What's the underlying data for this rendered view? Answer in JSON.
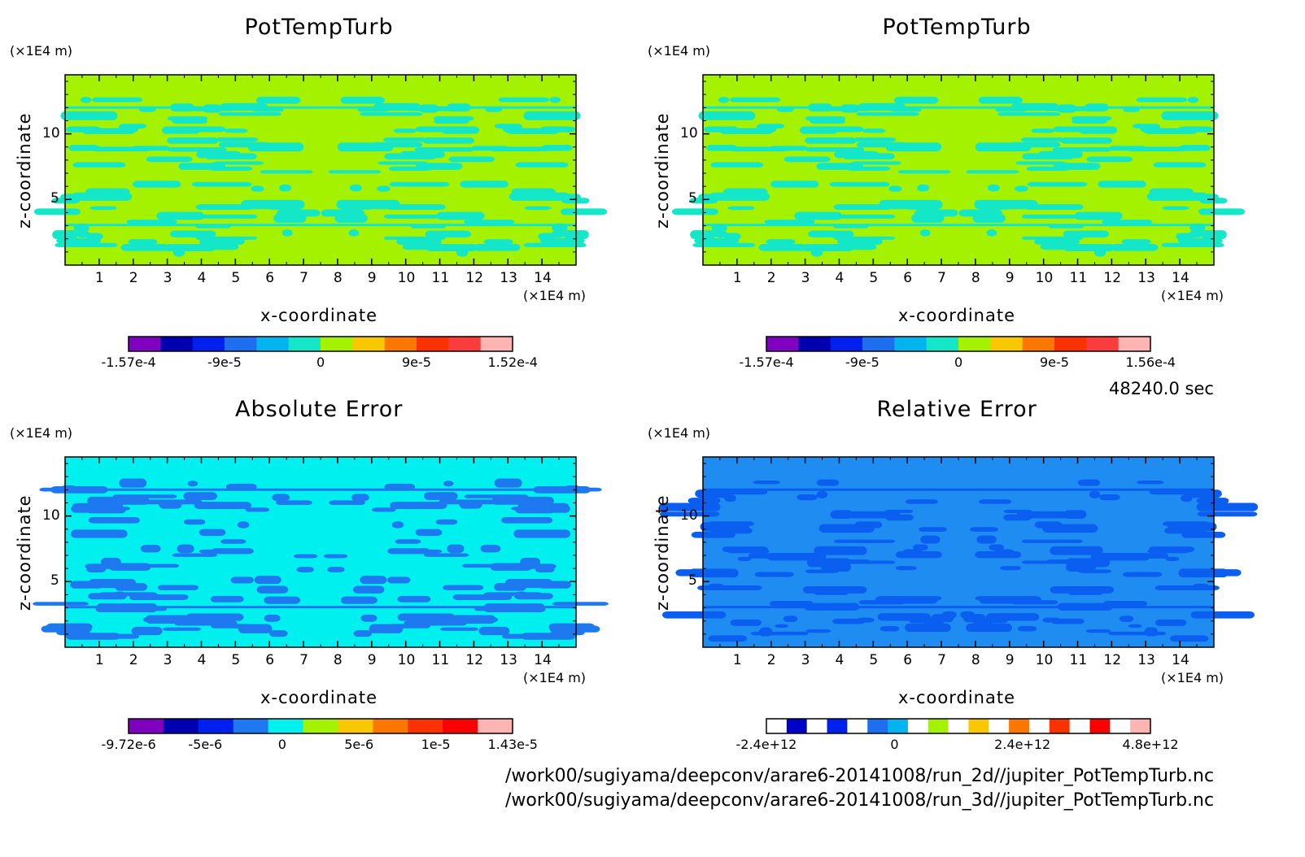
{
  "time_label": "48240.0 sec",
  "file_paths": [
    "/work00/sugiyama/deepconv/arare6-20141008/run_2d//jupiter_PotTempTurb.nc",
    "/work00/sugiyama/deepconv/arare6-20141008/run_3d//jupiter_PotTempTurb.nc"
  ],
  "chart_data": [
    {
      "type": "heatmap",
      "title": "PotTempTurb",
      "xlabel": "x-coordinate",
      "ylabel": "z-coordinate",
      "x_unit": "(×1E4 m)",
      "y_unit": "(×1E4 m)",
      "xlim": [
        0,
        15
      ],
      "ylim": [
        0,
        14.5
      ],
      "x_ticks": [
        "1",
        "2",
        "3",
        "4",
        "5",
        "6",
        "7",
        "8",
        "9",
        "10",
        "11",
        "12",
        "13",
        "14"
      ],
      "y_ticks": [
        "5",
        "10"
      ],
      "background_color": "#a5f200",
      "pattern_color": "#14e6c8",
      "colorbar": {
        "colors": [
          "#8000c0",
          "#0000b0",
          "#0020f0",
          "#1e6ef0",
          "#00b4f0",
          "#14e6c8",
          "#a5f200",
          "#fac800",
          "#fa7800",
          "#fa3200",
          "#fa3c3c",
          "#ffb4b4"
        ],
        "tick_labels": [
          "-1.57e-4",
          "-9e-5",
          "0",
          "9e-5",
          "1.52e-4"
        ]
      }
    },
    {
      "type": "heatmap",
      "title": "PotTempTurb",
      "xlabel": "x-coordinate",
      "ylabel": "z-coordinate",
      "x_unit": "(×1E4 m)",
      "y_unit": "(×1E4 m)",
      "xlim": [
        0,
        15
      ],
      "ylim": [
        0,
        14.5
      ],
      "x_ticks": [
        "1",
        "2",
        "3",
        "4",
        "5",
        "6",
        "7",
        "8",
        "9",
        "10",
        "11",
        "12",
        "13",
        "14"
      ],
      "y_ticks": [
        "5",
        "10"
      ],
      "background_color": "#a5f200",
      "pattern_color": "#14e6c8",
      "colorbar": {
        "colors": [
          "#8000c0",
          "#0000b0",
          "#0020f0",
          "#1e6ef0",
          "#00b4f0",
          "#14e6c8",
          "#a5f200",
          "#fac800",
          "#fa7800",
          "#fa3200",
          "#fa3c3c",
          "#ffb4b4"
        ],
        "tick_labels": [
          "-1.57e-4",
          "-9e-5",
          "0",
          "9e-5",
          "1.56e-4"
        ]
      }
    },
    {
      "type": "heatmap",
      "title": "Absolute Error",
      "xlabel": "x-coordinate",
      "ylabel": "z-coordinate",
      "x_unit": "(×1E4 m)",
      "y_unit": "(×1E4 m)",
      "xlim": [
        0,
        15
      ],
      "ylim": [
        0,
        14.5
      ],
      "x_ticks": [
        "1",
        "2",
        "3",
        "4",
        "5",
        "6",
        "7",
        "8",
        "9",
        "10",
        "11",
        "12",
        "13",
        "14"
      ],
      "y_ticks": [
        "5",
        "10"
      ],
      "background_color": "#00f0f0",
      "pattern_color": "#1e78f0",
      "colorbar": {
        "colors": [
          "#8000c0",
          "#0000b0",
          "#0020f0",
          "#1e78f0",
          "#00f0f0",
          "#a5f200",
          "#fac800",
          "#fa7800",
          "#fa3200",
          "#fa0000",
          "#ffb4b4"
        ],
        "tick_labels": [
          "-9.72e-6",
          "-5e-6",
          "0",
          "5e-6",
          "1e-5",
          "1.43e-5"
        ]
      }
    },
    {
      "type": "heatmap",
      "title": "Relative Error",
      "xlabel": "x-coordinate",
      "ylabel": "z-coordinate",
      "x_unit": "(×1E4 m)",
      "y_unit": "(×1E4 m)",
      "xlim": [
        0,
        15
      ],
      "ylim": [
        0,
        14.5
      ],
      "x_ticks": [
        "1",
        "2",
        "3",
        "4",
        "5",
        "6",
        "7",
        "8",
        "9",
        "10",
        "11",
        "12",
        "13",
        "14"
      ],
      "y_ticks": [
        "5",
        "10"
      ],
      "background_color": "#1e8cf0",
      "pattern_color": "#0a5ff0",
      "colorbar": {
        "colors": [
          "#ffffff",
          "#0000c8",
          "#ffffff",
          "#0020f0",
          "#ffffff",
          "#1e6ef0",
          "#00b4f0",
          "#ffffff",
          "#a5f200",
          "#ffffff",
          "#fac800",
          "#ffffff",
          "#fa7800",
          "#ffffff",
          "#fa3200",
          "#ffffff",
          "#fa0000",
          "#ffffff",
          "#ffb4b4"
        ],
        "tick_labels": [
          "-2.4e+12",
          "0",
          "2.4e+12",
          "4.8e+12"
        ]
      }
    }
  ]
}
